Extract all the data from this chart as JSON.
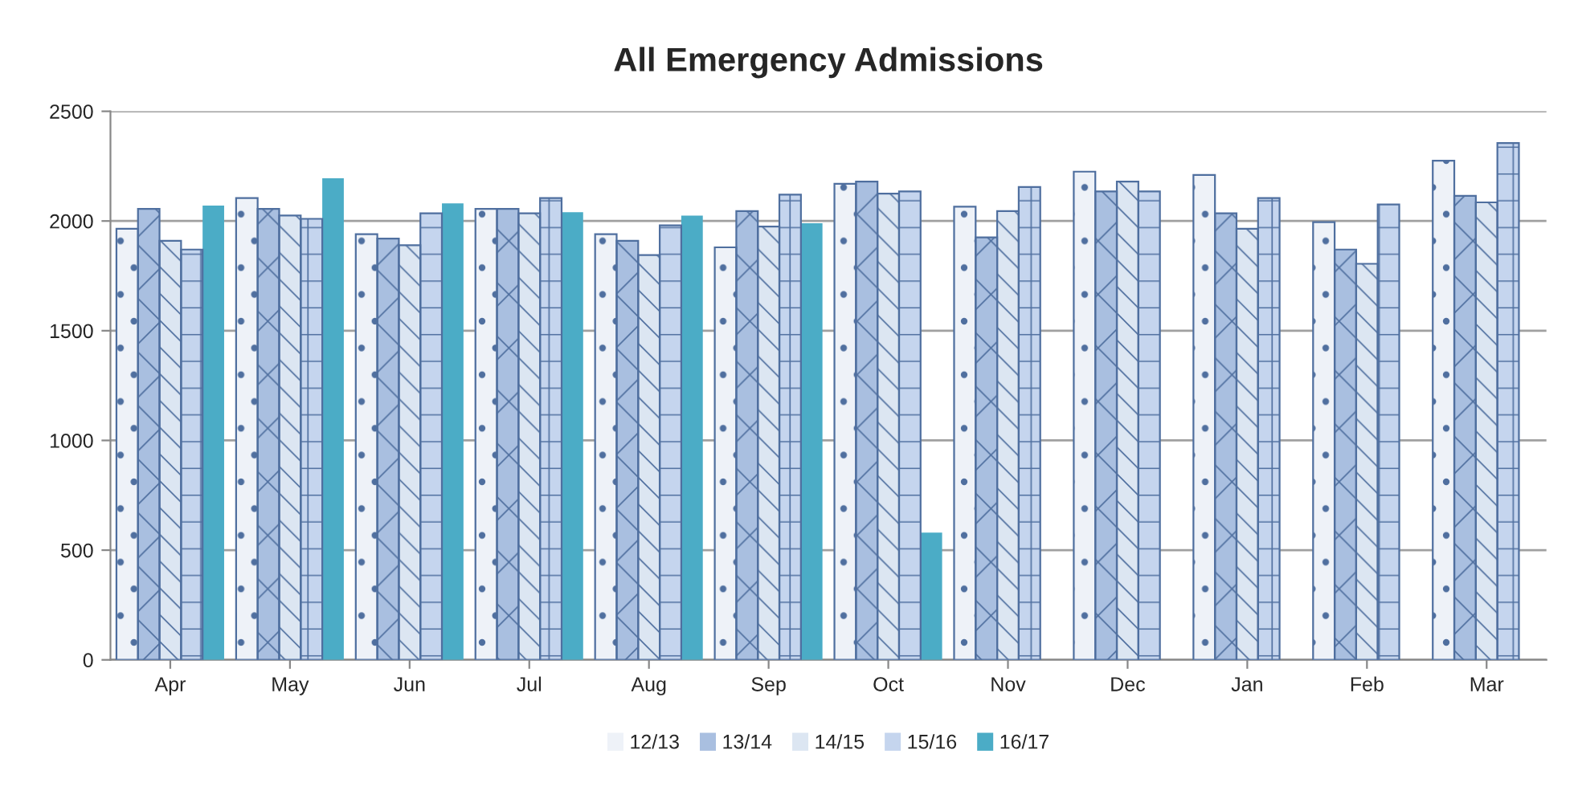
{
  "chart_data": {
    "type": "bar",
    "title": "All Emergency Admissions",
    "categories": [
      "Apr",
      "May",
      "Jun",
      "Jul",
      "Aug",
      "Sep",
      "Oct",
      "Nov",
      "Dec",
      "Jan",
      "Feb",
      "Mar"
    ],
    "series": [
      {
        "name": "12/13",
        "color": "#eef2f8",
        "values": [
          1965,
          2105,
          1940,
          2055,
          1940,
          1880,
          2170,
          2065,
          2225,
          2210,
          1995,
          2275
        ]
      },
      {
        "name": "13/14",
        "color": "#a9bfe0",
        "values": [
          2055,
          2055,
          1920,
          2055,
          1910,
          2045,
          2180,
          1925,
          2135,
          2035,
          1870,
          2115
        ]
      },
      {
        "name": "14/15",
        "color": "#dce6f2",
        "values": [
          1910,
          2025,
          1890,
          2035,
          1845,
          1975,
          2125,
          2045,
          2180,
          1965,
          1805,
          2085
        ]
      },
      {
        "name": "15/16",
        "color": "#c5d5ee",
        "values": [
          1870,
          2010,
          2035,
          2105,
          1980,
          2120,
          2135,
          2155,
          2135,
          2105,
          2075,
          2355
        ]
      },
      {
        "name": "16/17",
        "color": "#4bacc6",
        "values": [
          2070,
          2195,
          2080,
          2040,
          2025,
          1990,
          580,
          null,
          null,
          null,
          null,
          null
        ]
      }
    ],
    "ylim": [
      0,
      2500
    ],
    "yticks": [
      0,
      500,
      1000,
      1500,
      2000,
      2500
    ],
    "grid": "y",
    "legend": "bottom"
  }
}
